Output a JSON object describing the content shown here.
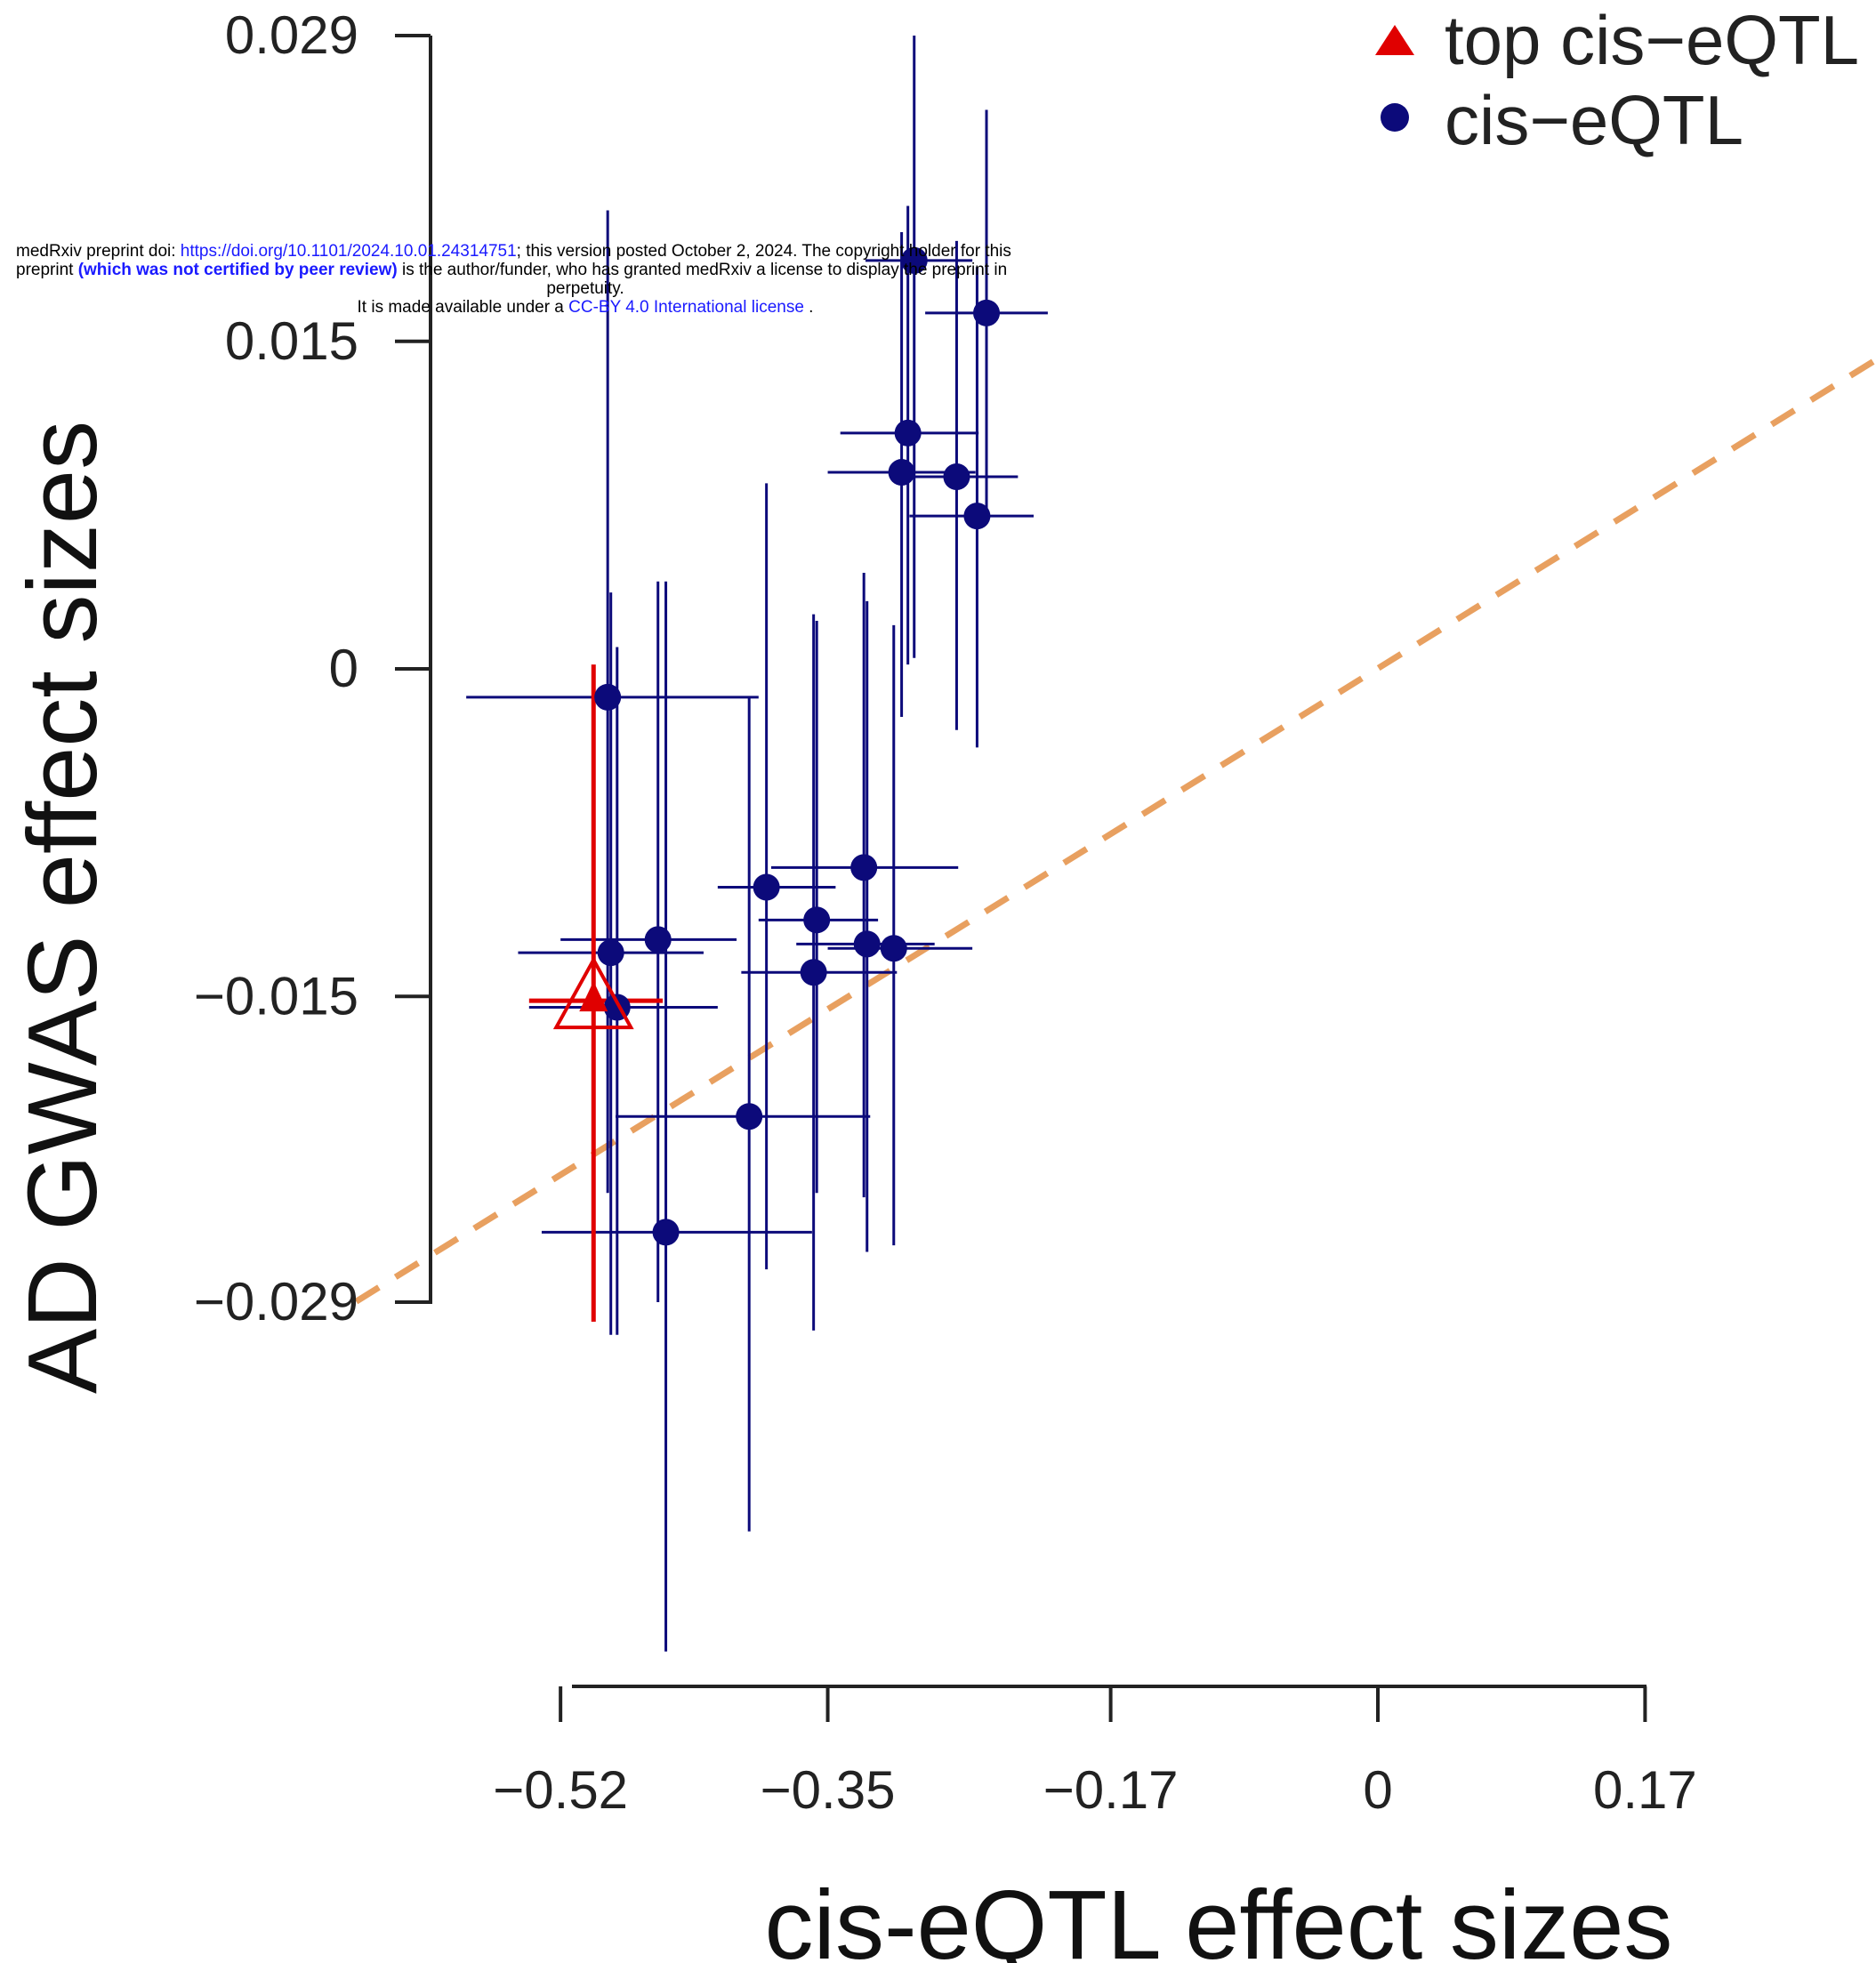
{
  "banner": {
    "doi_prefix": "medRxiv preprint doi: ",
    "doi_link": "https://doi.org/10.1101/2024.10.01.24314751",
    "doi_suffix": "; this version posted October 2, 2024. The copyright holder for this",
    "line2_prefix": "preprint ",
    "line2_bold": "(which was not certified by peer review)",
    "line2_suffix": " is the author/funder, who has granted medRxiv a license to display the preprint in",
    "line3": "perpetuity.",
    "line4_prefix": "It is made available under a ",
    "line4_link": "CC-BY 4.0 International license",
    "line4_suffix": " ."
  },
  "chart_data": {
    "type": "scatter",
    "xlabel": "cis-eQTL effect sizes",
    "ylabel": "AD GWAS effect sizes",
    "x_ticks": [
      -0.52,
      -0.35,
      -0.17,
      0,
      0.17
    ],
    "x_tick_labels": [
      "−0.52",
      "−0.35",
      "−0.17",
      "0",
      "0.17"
    ],
    "y_ticks": [
      0.029,
      0.015,
      0,
      -0.015,
      -0.029
    ],
    "y_tick_labels": [
      "0.029",
      "0.015",
      "0",
      "−0.015",
      "−0.029"
    ],
    "legend_position": "top-right",
    "legend": [
      {
        "label": "top cis−eQTL",
        "marker": "triangle",
        "color": "#e00000"
      },
      {
        "label": "cis−eQTL",
        "marker": "circle",
        "color": "#0c0a7a"
      }
    ],
    "fit_line": {
      "style": "dashed",
      "color": "#e8a060",
      "slope": 0.0446,
      "intercept": 2e-05
    },
    "series": [
      {
        "name": "top cis−eQTL",
        "marker": "triangle",
        "color": "#e00000",
        "points": [
          {
            "x": -0.499,
            "y": -0.0152,
            "x_low": -0.54,
            "x_high": -0.455,
            "y_low": -0.0299,
            "y_high": 0.0002
          }
        ]
      },
      {
        "name": "cis−eQTL",
        "marker": "circle",
        "color": "#0c0a7a",
        "points": [
          {
            "x": -0.295,
            "y": 0.0187,
            "x_low": -0.326,
            "x_high": -0.258,
            "y_low": 0.0005,
            "y_high": 0.029
          },
          {
            "x": -0.249,
            "y": 0.0163,
            "x_low": -0.288,
            "x_high": -0.21,
            "y_low": 0.0072,
            "y_high": 0.0256
          },
          {
            "x": -0.299,
            "y": 0.0108,
            "x_low": -0.342,
            "x_high": -0.254,
            "y_low": 0.0002,
            "y_high": 0.0212
          },
          {
            "x": -0.303,
            "y": 0.009,
            "x_low": -0.35,
            "x_high": -0.256,
            "y_low": -0.0022,
            "y_high": 0.02
          },
          {
            "x": -0.268,
            "y": 0.0088,
            "x_low": -0.31,
            "x_high": -0.229,
            "y_low": -0.0028,
            "y_high": 0.0196
          },
          {
            "x": -0.255,
            "y": 0.007,
            "x_low": -0.298,
            "x_high": -0.219,
            "y_low": -0.0036,
            "y_high": 0.0184
          },
          {
            "x": -0.49,
            "y": -0.0013,
            "x_low": -0.58,
            "x_high": -0.394,
            "y_low": -0.024,
            "y_high": 0.021
          },
          {
            "x": -0.327,
            "y": -0.0091,
            "x_low": -0.386,
            "x_high": -0.267,
            "y_low": -0.0242,
            "y_high": 0.0044
          },
          {
            "x": -0.389,
            "y": -0.01,
            "x_low": -0.42,
            "x_high": -0.345,
            "y_low": -0.0275,
            "y_high": 0.0085
          },
          {
            "x": -0.357,
            "y": -0.0115,
            "x_low": -0.394,
            "x_high": -0.318,
            "y_low": -0.024,
            "y_high": 0.0022
          },
          {
            "x": -0.325,
            "y": -0.0126,
            "x_low": -0.37,
            "x_high": -0.282,
            "y_low": -0.0267,
            "y_high": 0.0031
          },
          {
            "x": -0.308,
            "y": -0.0128,
            "x_low": -0.35,
            "x_high": -0.258,
            "y_low": -0.0264,
            "y_high": 0.002
          },
          {
            "x": -0.458,
            "y": -0.0124,
            "x_low": -0.52,
            "x_high": -0.408,
            "y_low": -0.029,
            "y_high": 0.004
          },
          {
            "x": -0.488,
            "y": -0.013,
            "x_low": -0.547,
            "x_high": -0.429,
            "y_low": -0.0305,
            "y_high": 0.0035
          },
          {
            "x": -0.359,
            "y": -0.0139,
            "x_low": -0.405,
            "x_high": -0.306,
            "y_low": -0.0303,
            "y_high": 0.0025
          },
          {
            "x": -0.4,
            "y": -0.0205,
            "x_low": -0.485,
            "x_high": -0.323,
            "y_low": -0.0395,
            "y_high": -0.0013
          },
          {
            "x": -0.453,
            "y": -0.0258,
            "x_low": -0.532,
            "x_high": -0.36,
            "y_low": -0.045,
            "y_high": 0.004
          },
          {
            "x": -0.484,
            "y": -0.0155,
            "x_low": -0.54,
            "x_high": -0.42,
            "y_low": -0.0305,
            "y_high": 0.001
          }
        ]
      }
    ]
  }
}
